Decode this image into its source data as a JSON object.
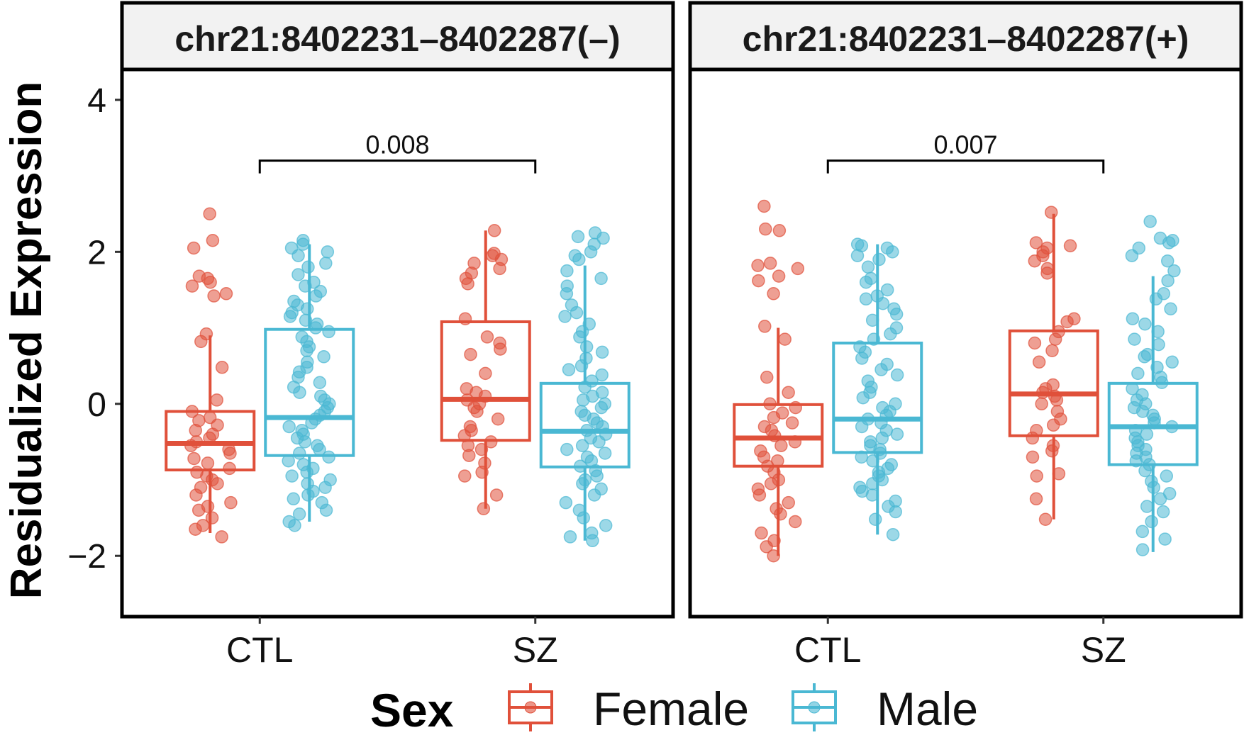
{
  "chart_data": {
    "type": "boxplot",
    "ylabel": "Residualized Expression",
    "yticks": [
      -2,
      0,
      2,
      4
    ],
    "ytick_labels": [
      "−2",
      "0",
      "2",
      "4"
    ],
    "ylim": [
      -2.8,
      4.4
    ],
    "categories": [
      "CTL",
      "SZ"
    ],
    "legend": {
      "title": "Sex",
      "position": "bottom",
      "entries": [
        {
          "name": "Female",
          "color": "#e0503a"
        },
        {
          "name": "Male",
          "color": "#4ab8d3"
        }
      ]
    },
    "panels": [
      {
        "title": "chr21:8402231–8402287(–)",
        "pvalue": "0.008",
        "bracket_y": 3.2,
        "groups": [
          {
            "category": "CTL",
            "sex": "Female",
            "whisker_low": -1.7,
            "q1": -0.87,
            "median": -0.52,
            "q3": -0.1,
            "whisker_high": 0.9,
            "points": [
              2.5,
              2.15,
              2.05,
              1.68,
              1.65,
              1.6,
              1.55,
              1.45,
              1.42,
              0.92,
              0.82,
              0.48,
              0.05,
              -0.1,
              -0.18,
              -0.22,
              -0.28,
              -0.35,
              -0.4,
              -0.45,
              -0.5,
              -0.55,
              -0.6,
              -0.65,
              -0.72,
              -0.78,
              -0.85,
              -0.9,
              -0.95,
              -1.0,
              -1.05,
              -1.1,
              -1.2,
              -1.3,
              -1.35,
              -1.4,
              -1.5,
              -1.6,
              -1.65,
              -1.75
            ]
          },
          {
            "category": "CTL",
            "sex": "Male",
            "whisker_low": -1.55,
            "q1": -0.68,
            "median": -0.18,
            "q3": 0.98,
            "whisker_high": 2.1,
            "points": [
              2.15,
              2.1,
              2.05,
              2.0,
              1.95,
              1.85,
              1.8,
              1.7,
              1.6,
              1.55,
              1.48,
              1.42,
              1.35,
              1.3,
              1.25,
              1.2,
              1.15,
              1.1,
              1.05,
              1.0,
              0.95,
              0.88,
              0.82,
              0.75,
              0.7,
              0.62,
              0.55,
              0.48,
              0.42,
              0.35,
              0.28,
              0.22,
              0.15,
              0.1,
              0.05,
              0.0,
              -0.05,
              -0.1,
              -0.15,
              -0.2,
              -0.25,
              -0.3,
              -0.35,
              -0.4,
              -0.45,
              -0.5,
              -0.55,
              -0.6,
              -0.65,
              -0.7,
              -0.75,
              -0.8,
              -0.85,
              -0.9,
              -0.95,
              -1.0,
              -1.05,
              -1.1,
              -1.15,
              -1.2,
              -1.25,
              -1.3,
              -1.4,
              -1.45,
              -1.55,
              -1.6
            ]
          },
          {
            "category": "SZ",
            "sex": "Female",
            "whisker_low": -1.38,
            "q1": -0.48,
            "median": 0.06,
            "q3": 1.08,
            "whisker_high": 2.28,
            "points": [
              2.28,
              1.98,
              1.95,
              1.9,
              1.85,
              1.78,
              1.72,
              1.65,
              1.58,
              1.12,
              0.88,
              0.8,
              0.72,
              0.65,
              0.4,
              0.2,
              0.15,
              0.1,
              0.05,
              0.0,
              -0.05,
              -0.1,
              -0.2,
              -0.3,
              -0.35,
              -0.42,
              -0.5,
              -0.55,
              -0.6,
              -0.68,
              -0.78,
              -0.9,
              -0.95,
              -1.2,
              -1.38
            ]
          },
          {
            "category": "SZ",
            "sex": "Male",
            "whisker_low": -1.8,
            "q1": -0.83,
            "median": -0.36,
            "q3": 0.27,
            "whisker_high": 1.82,
            "points": [
              2.25,
              2.2,
              2.18,
              2.1,
              2.0,
              1.95,
              1.9,
              1.75,
              1.65,
              1.55,
              1.45,
              1.3,
              1.2,
              1.15,
              1.05,
              0.95,
              0.88,
              0.75,
              0.68,
              0.6,
              0.5,
              0.45,
              0.38,
              0.3,
              0.22,
              0.15,
              0.1,
              0.05,
              0.0,
              -0.05,
              -0.1,
              -0.15,
              -0.2,
              -0.25,
              -0.3,
              -0.35,
              -0.4,
              -0.45,
              -0.5,
              -0.55,
              -0.6,
              -0.65,
              -0.7,
              -0.75,
              -0.82,
              -0.88,
              -0.95,
              -1.0,
              -1.05,
              -1.12,
              -1.2,
              -1.3,
              -1.4,
              -1.5,
              -1.6,
              -1.7,
              -1.75,
              -1.8
            ]
          }
        ]
      },
      {
        "title": "chr21:8402231–8402287(+)",
        "pvalue": "0.007",
        "bracket_y": 3.2,
        "groups": [
          {
            "category": "CTL",
            "sex": "Female",
            "whisker_low": -2.0,
            "q1": -0.82,
            "median": -0.45,
            "q3": -0.01,
            "whisker_high": 1.0,
            "points": [
              2.6,
              2.3,
              2.28,
              1.85,
              1.82,
              1.78,
              1.68,
              1.62,
              1.45,
              1.02,
              0.85,
              0.35,
              0.15,
              0.0,
              -0.05,
              -0.12,
              -0.18,
              -0.25,
              -0.3,
              -0.35,
              -0.42,
              -0.5,
              -0.55,
              -0.62,
              -0.7,
              -0.75,
              -0.82,
              -0.9,
              -1.0,
              -1.05,
              -1.12,
              -1.2,
              -1.3,
              -1.38,
              -1.45,
              -1.55,
              -1.7,
              -1.8,
              -1.88,
              -2.0
            ]
          },
          {
            "category": "CTL",
            "sex": "Male",
            "whisker_low": -1.72,
            "q1": -0.64,
            "median": -0.2,
            "q3": 0.8,
            "whisker_high": 2.1,
            "points": [
              2.1,
              2.08,
              2.05,
              2.0,
              1.95,
              1.9,
              1.8,
              1.65,
              1.6,
              1.5,
              1.42,
              1.38,
              1.32,
              1.25,
              1.18,
              1.1,
              1.0,
              0.92,
              0.85,
              0.75,
              0.68,
              0.6,
              0.52,
              0.45,
              0.38,
              0.3,
              0.22,
              0.15,
              0.08,
              0.0,
              -0.05,
              -0.1,
              -0.15,
              -0.2,
              -0.25,
              -0.3,
              -0.35,
              -0.4,
              -0.45,
              -0.5,
              -0.55,
              -0.6,
              -0.65,
              -0.7,
              -0.75,
              -0.8,
              -0.85,
              -0.9,
              -0.95,
              -1.0,
              -1.05,
              -1.1,
              -1.15,
              -1.2,
              -1.28,
              -1.35,
              -1.42,
              -1.52,
              -1.72
            ]
          },
          {
            "category": "SZ",
            "sex": "Female",
            "whisker_low": -1.52,
            "q1": -0.42,
            "median": 0.13,
            "q3": 0.96,
            "whisker_high": 2.5,
            "points": [
              2.52,
              2.12,
              2.08,
              2.05,
              2.0,
              1.95,
              1.88,
              1.78,
              1.72,
              1.12,
              1.08,
              0.95,
              0.85,
              0.8,
              0.7,
              0.55,
              0.25,
              0.2,
              0.15,
              0.1,
              0.05,
              0.0,
              -0.1,
              -0.2,
              -0.28,
              -0.35,
              -0.45,
              -0.55,
              -0.62,
              -0.7,
              -0.92,
              -0.95,
              -1.25,
              -1.52
            ]
          },
          {
            "category": "SZ",
            "sex": "Male",
            "whisker_low": -1.95,
            "q1": -0.8,
            "median": -0.3,
            "q3": 0.27,
            "whisker_high": 1.68,
            "points": [
              2.4,
              2.18,
              2.15,
              2.12,
              2.05,
              1.95,
              1.88,
              1.75,
              1.62,
              1.45,
              1.38,
              1.25,
              1.12,
              1.05,
              0.95,
              0.85,
              0.78,
              0.65,
              0.62,
              0.55,
              0.48,
              0.4,
              0.35,
              0.28,
              0.2,
              0.12,
              0.05,
              0.0,
              -0.05,
              -0.1,
              -0.15,
              -0.2,
              -0.25,
              -0.3,
              -0.35,
              -0.4,
              -0.45,
              -0.5,
              -0.55,
              -0.6,
              -0.65,
              -0.7,
              -0.75,
              -0.8,
              -0.88,
              -0.95,
              -1.02,
              -1.1,
              -1.18,
              -1.25,
              -1.35,
              -1.42,
              -1.55,
              -1.68,
              -1.78,
              -1.92
            ]
          }
        ]
      }
    ]
  }
}
